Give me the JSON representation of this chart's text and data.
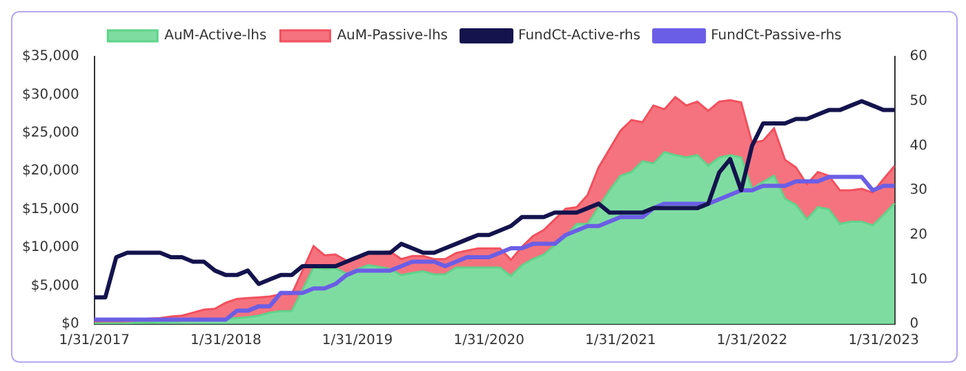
{
  "chart_data": {
    "type": "area",
    "stacked": true,
    "legend": "top",
    "grid": false,
    "categories": [
      "1/31/2017",
      null,
      null,
      null,
      null,
      null,
      null,
      null,
      null,
      null,
      null,
      null,
      "1/31/2018",
      null,
      null,
      null,
      null,
      null,
      null,
      null,
      null,
      null,
      null,
      null,
      "1/31/2019",
      null,
      null,
      null,
      null,
      null,
      null,
      null,
      null,
      null,
      null,
      null,
      "1/31/2020",
      null,
      null,
      null,
      null,
      null,
      null,
      null,
      null,
      null,
      null,
      null,
      "1/31/2021",
      null,
      null,
      null,
      null,
      null,
      null,
      null,
      null,
      null,
      null,
      null,
      "1/31/2022",
      null,
      null,
      null,
      null,
      null,
      null,
      null,
      null,
      null,
      null,
      null,
      "1/31/2023",
      null
    ],
    "ylim": [
      0,
      35000
    ],
    "yticks": [
      {
        "value": 0,
        "label": "$0"
      },
      {
        "value": 5000,
        "label": "$5,000"
      },
      {
        "value": 10000,
        "label": "$10,000"
      },
      {
        "value": 15000,
        "label": "$15,000"
      },
      {
        "value": 20000,
        "label": "$20,000"
      },
      {
        "value": 25000,
        "label": "$25,000"
      },
      {
        "value": 30000,
        "label": "$30,000"
      },
      {
        "value": 35000,
        "label": "$35,000"
      }
    ],
    "y2lim": [
      0,
      60
    ],
    "y2ticks": [
      0,
      10,
      20,
      30,
      40,
      50,
      60
    ],
    "series": [
      {
        "name": "AuM-Active-lhs",
        "color": "#5fd38a",
        "values": [
          100,
          100,
          100,
          100,
          200,
          200,
          300,
          300,
          400,
          400,
          500,
          600,
          700,
          800,
          900,
          1100,
          1500,
          1700,
          1700,
          4500,
          7400,
          7200,
          7300,
          6600,
          7200,
          7700,
          7500,
          7200,
          6400,
          6700,
          6900,
          6500,
          6500,
          7400,
          7400,
          7400,
          7400,
          7400,
          6300,
          7700,
          8500,
          9100,
          10300,
          11500,
          13100,
          13100,
          15300,
          17500,
          19400,
          19900,
          21300,
          21000,
          22500,
          22100,
          21800,
          22100,
          20700,
          21800,
          22100,
          21800,
          17700,
          18600,
          19400,
          16400,
          15600,
          13700,
          15300,
          15000,
          13100,
          13400,
          13400,
          12900,
          14300,
          15800
        ]
      },
      {
        "name": "AuM-Passive-lhs",
        "color": "#f2505e",
        "values": [
          200,
          300,
          300,
          400,
          400,
          500,
          500,
          700,
          700,
          1100,
          1400,
          1400,
          2100,
          2500,
          2500,
          2400,
          2100,
          2200,
          2200,
          2500,
          2800,
          1800,
          1800,
          1700,
          1600,
          1600,
          1900,
          2300,
          2100,
          2200,
          2000,
          2000,
          2000,
          1900,
          2200,
          2500,
          2500,
          2500,
          2100,
          2400,
          3000,
          3200,
          3400,
          3600,
          2200,
          3800,
          5200,
          5400,
          5900,
          6800,
          5100,
          7600,
          5600,
          7600,
          6800,
          7000,
          7200,
          7300,
          7200,
          7200,
          6000,
          5400,
          6200,
          5100,
          4900,
          4600,
          4600,
          4400,
          4400,
          4100,
          4300,
          4300,
          4700,
          4900
        ]
      },
      {
        "name": "FundCt-Active-rhs",
        "type": "line",
        "axis": "y2",
        "color": "#14134d",
        "values": [
          6,
          6,
          15,
          16,
          16,
          16,
          16,
          15,
          15,
          14,
          14,
          12,
          11,
          11,
          12,
          9,
          10,
          11,
          11,
          13,
          13,
          13,
          13,
          14,
          15,
          16,
          16,
          16,
          18,
          17,
          16,
          16,
          17,
          18,
          19,
          20,
          20,
          21,
          22,
          24,
          24,
          24,
          25,
          25,
          25,
          26,
          27,
          25,
          25,
          25,
          25,
          26,
          26,
          26,
          26,
          26,
          27,
          34,
          37,
          30,
          40,
          45,
          45,
          45,
          46,
          46,
          47,
          48,
          48,
          49,
          50,
          49,
          48,
          48
        ]
      },
      {
        "name": "FundCt-Passive-rhs",
        "type": "line",
        "axis": "y2",
        "color": "#6b5ee6",
        "values": [
          1,
          1,
          1,
          1,
          1,
          1,
          1,
          1,
          1,
          1,
          1,
          1,
          1,
          3,
          3,
          4,
          4,
          7,
          7,
          7,
          8,
          8,
          9,
          11,
          12,
          12,
          12,
          12,
          13,
          14,
          14,
          14,
          13,
          14,
          15,
          15,
          15,
          16,
          17,
          17,
          18,
          18,
          18,
          20,
          21,
          22,
          22,
          23,
          24,
          24,
          24,
          26,
          27,
          27,
          27,
          27,
          27,
          28,
          29,
          30,
          30,
          31,
          31,
          31,
          32,
          32,
          32,
          33,
          33,
          33,
          33,
          30,
          31,
          31
        ]
      }
    ]
  }
}
